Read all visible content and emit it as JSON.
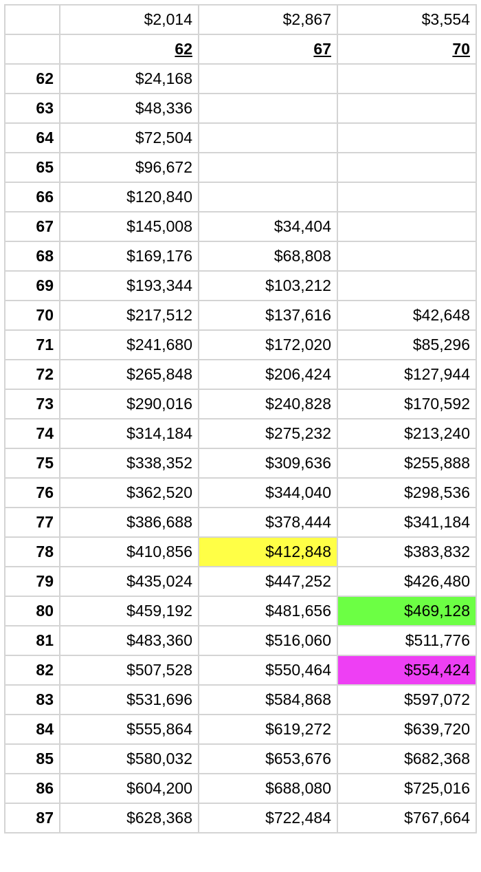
{
  "monthly": [
    "$2,014",
    "$2,867",
    "$3,554"
  ],
  "start_ages": [
    "62",
    "67",
    "70"
  ],
  "rows": [
    {
      "age": "62",
      "v": [
        "$24,168",
        "",
        ""
      ]
    },
    {
      "age": "63",
      "v": [
        "$48,336",
        "",
        ""
      ]
    },
    {
      "age": "64",
      "v": [
        "$72,504",
        "",
        ""
      ]
    },
    {
      "age": "65",
      "v": [
        "$96,672",
        "",
        ""
      ]
    },
    {
      "age": "66",
      "v": [
        "$120,840",
        "",
        ""
      ]
    },
    {
      "age": "67",
      "v": [
        "$145,008",
        "$34,404",
        ""
      ]
    },
    {
      "age": "68",
      "v": [
        "$169,176",
        "$68,808",
        ""
      ]
    },
    {
      "age": "69",
      "v": [
        "$193,344",
        "$103,212",
        ""
      ]
    },
    {
      "age": "70",
      "v": [
        "$217,512",
        "$137,616",
        "$42,648"
      ]
    },
    {
      "age": "71",
      "v": [
        "$241,680",
        "$172,020",
        "$85,296"
      ]
    },
    {
      "age": "72",
      "v": [
        "$265,848",
        "$206,424",
        "$127,944"
      ]
    },
    {
      "age": "73",
      "v": [
        "$290,016",
        "$240,828",
        "$170,592"
      ]
    },
    {
      "age": "74",
      "v": [
        "$314,184",
        "$275,232",
        "$213,240"
      ]
    },
    {
      "age": "75",
      "v": [
        "$338,352",
        "$309,636",
        "$255,888"
      ]
    },
    {
      "age": "76",
      "v": [
        "$362,520",
        "$344,040",
        "$298,536"
      ]
    },
    {
      "age": "77",
      "v": [
        "$386,688",
        "$378,444",
        "$341,184"
      ]
    },
    {
      "age": "78",
      "v": [
        "$410,856",
        "$412,848",
        "$383,832"
      ]
    },
    {
      "age": "79",
      "v": [
        "$435,024",
        "$447,252",
        "$426,480"
      ]
    },
    {
      "age": "80",
      "v": [
        "$459,192",
        "$481,656",
        "$469,128"
      ]
    },
    {
      "age": "81",
      "v": [
        "$483,360",
        "$516,060",
        "$511,776"
      ]
    },
    {
      "age": "82",
      "v": [
        "$507,528",
        "$550,464",
        "$554,424"
      ]
    },
    {
      "age": "83",
      "v": [
        "$531,696",
        "$584,868",
        "$597,072"
      ]
    },
    {
      "age": "84",
      "v": [
        "$555,864",
        "$619,272",
        "$639,720"
      ]
    },
    {
      "age": "85",
      "v": [
        "$580,032",
        "$653,676",
        "$682,368"
      ]
    },
    {
      "age": "86",
      "v": [
        "$604,200",
        "$688,080",
        "$725,016"
      ]
    },
    {
      "age": "87",
      "v": [
        "$628,368",
        "$722,484",
        "$767,664"
      ]
    }
  ],
  "highlights": {
    "yellow": "#ffff46",
    "green": "#6cff44",
    "magenta": "#ee3ff4"
  }
}
